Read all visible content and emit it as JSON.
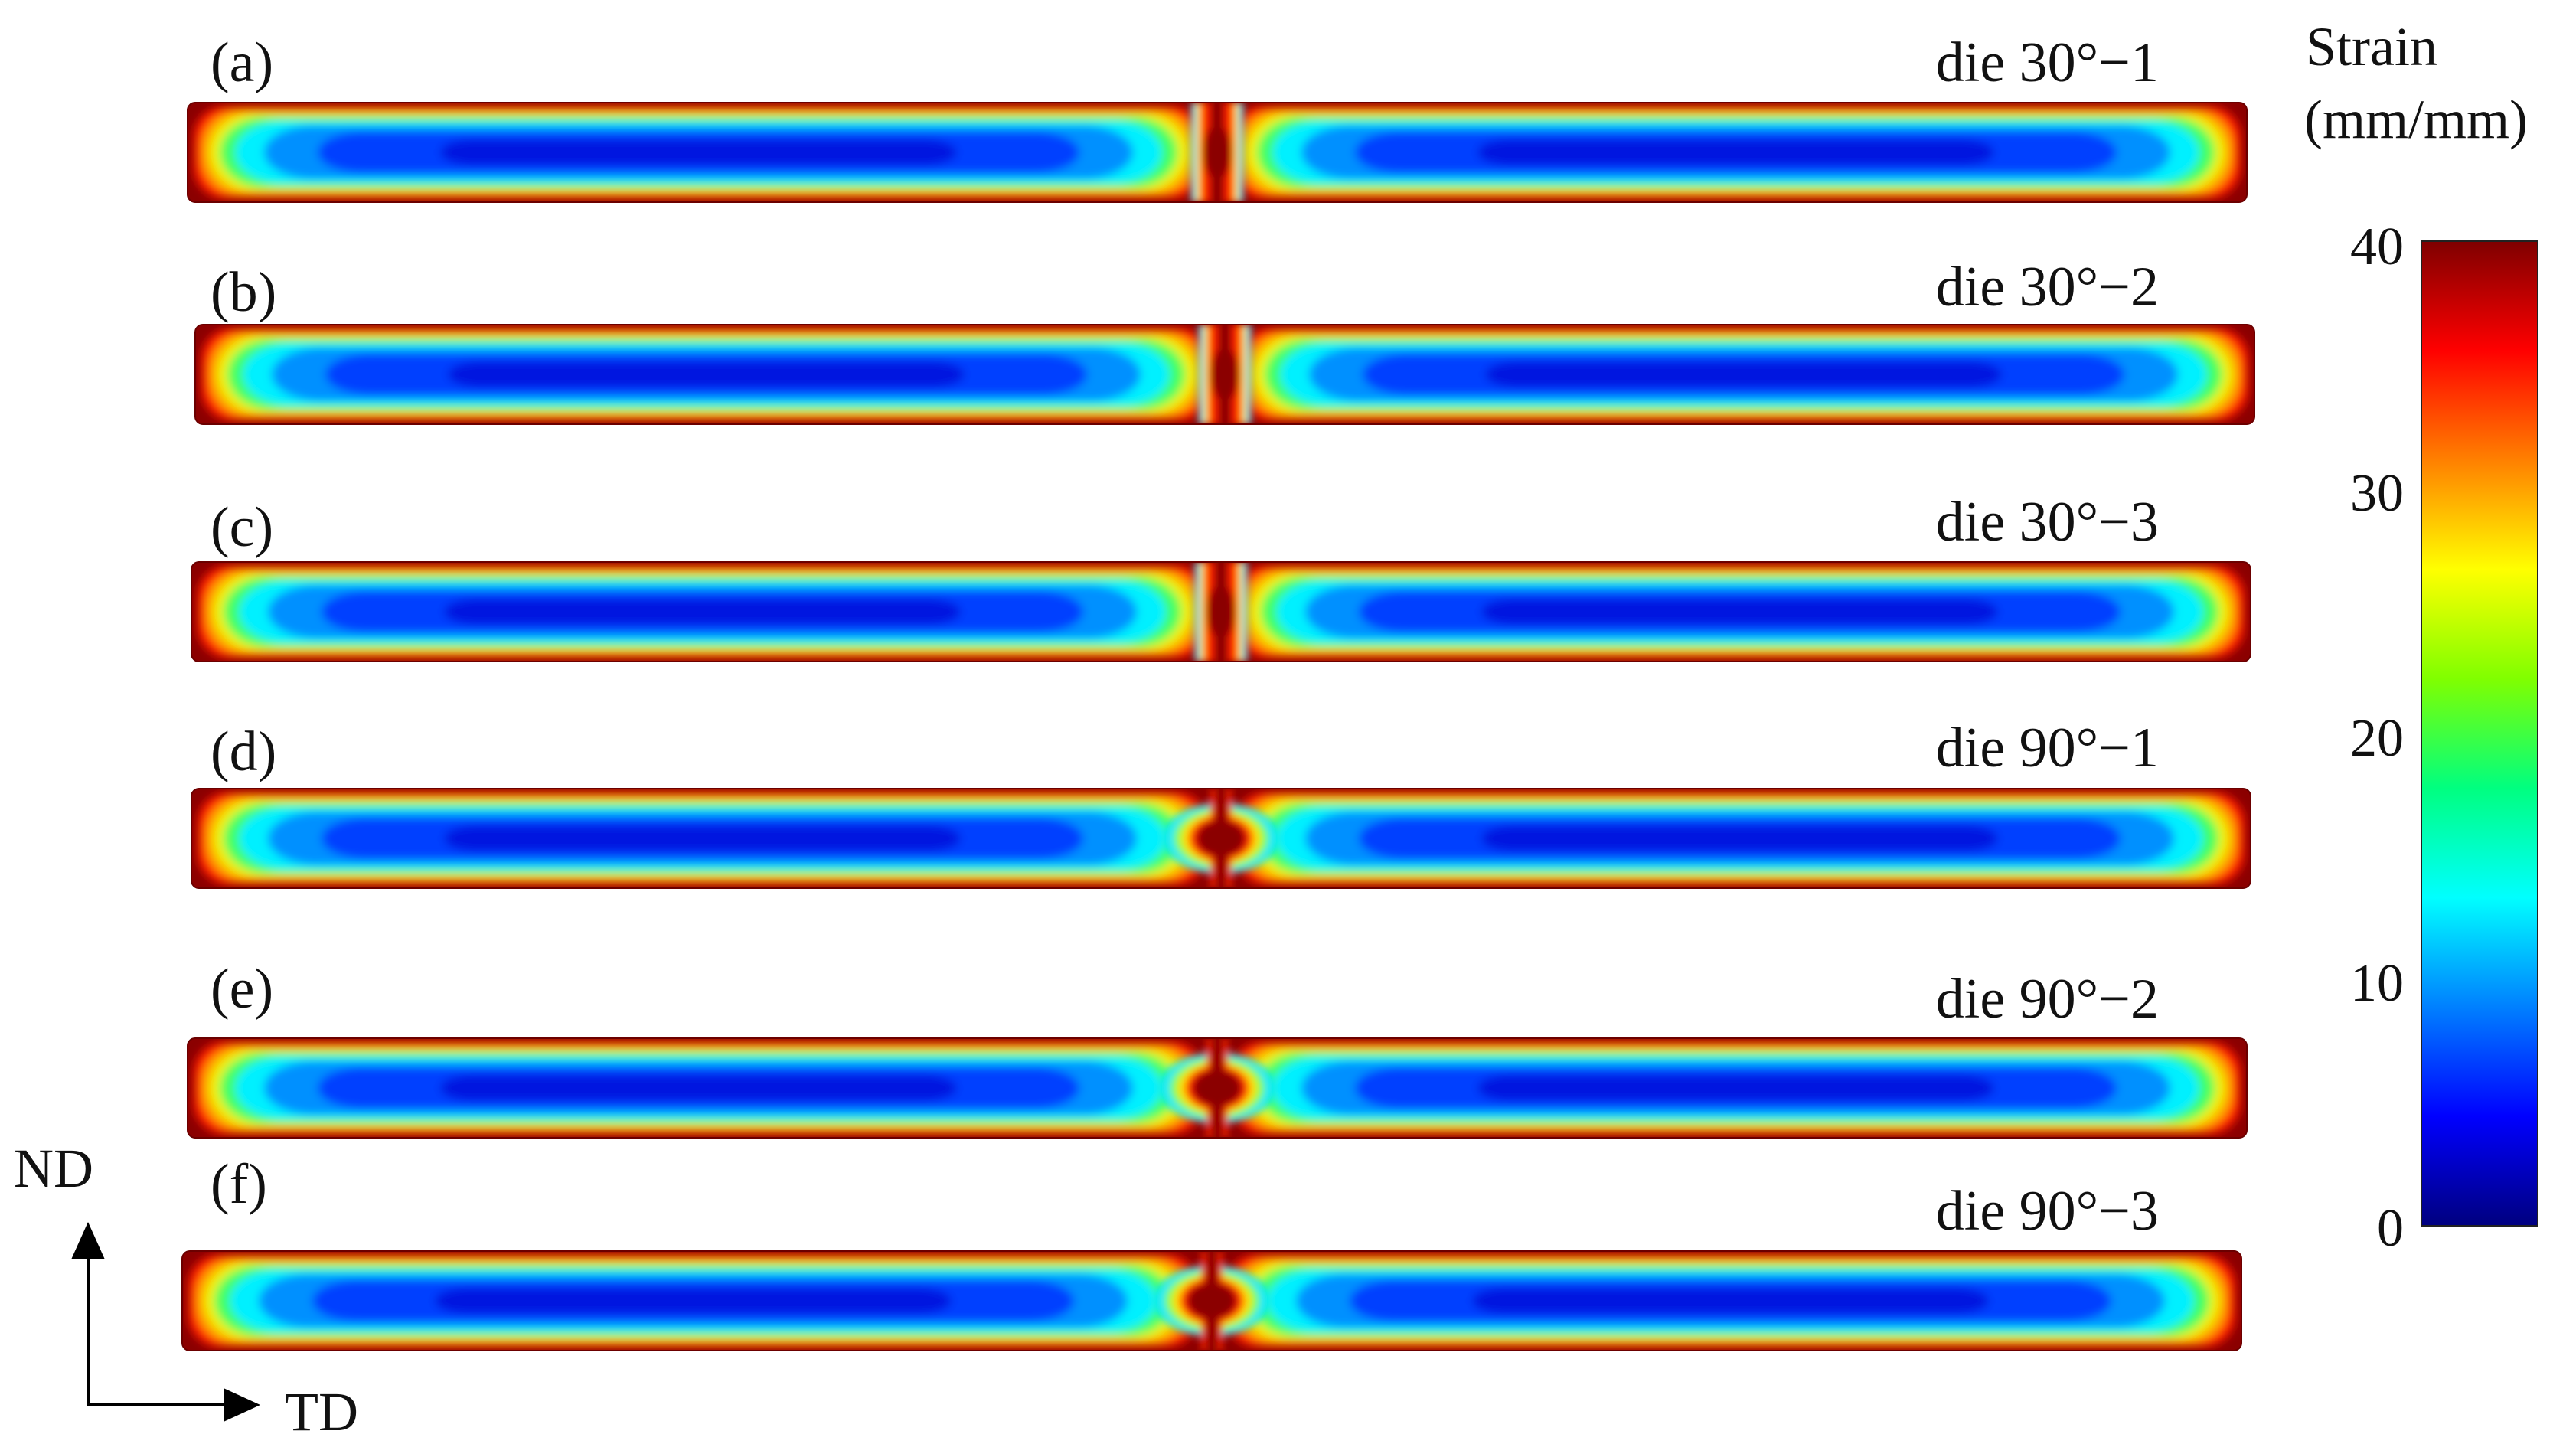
{
  "panels": [
    {
      "letter": "(a)",
      "title": "die 30°−1",
      "neck": "narrow"
    },
    {
      "letter": "(b)",
      "title": "die 30°−2",
      "neck": "narrow"
    },
    {
      "letter": "(c)",
      "title": "die 30°−3",
      "neck": "narrow"
    },
    {
      "letter": "(d)",
      "title": "die 90°−1",
      "neck": "bulb"
    },
    {
      "letter": "(e)",
      "title": "die 90°−2",
      "neck": "bulb"
    },
    {
      "letter": "(f)",
      "title": "die 90°−3",
      "neck": "bulb"
    }
  ],
  "colorbar": {
    "title_line1": "Strain",
    "title_line2": "(mm/mm)",
    "ticks": [
      "40",
      "30",
      "20",
      "10",
      "0"
    ],
    "range": [
      0,
      40
    ],
    "colors": [
      "#00007f",
      "#0000ff",
      "#0080ff",
      "#00ffff",
      "#00ff80",
      "#80ff00",
      "#ffff00",
      "#ff8000",
      "#ff0000",
      "#7f0000"
    ]
  },
  "axes": {
    "vertical": "ND",
    "horizontal": "TD"
  }
}
